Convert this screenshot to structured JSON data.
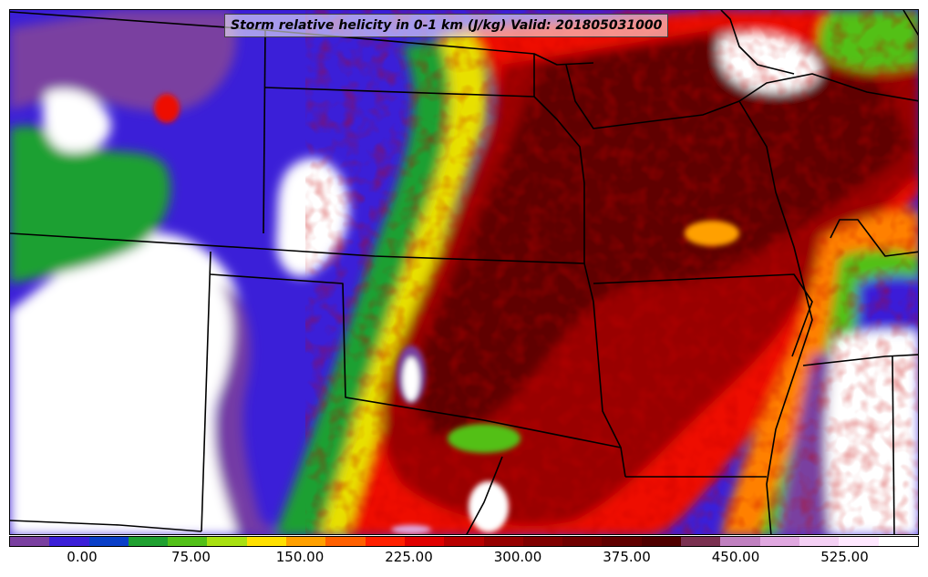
{
  "title": "Storm relative helicity in 0-1 km (J/kg) Valid: 201805031000",
  "colorbar": {
    "colors": [
      "#7a3fa0",
      "#3b1fd8",
      "#0a3fc8",
      "#1fa030",
      "#52c018",
      "#a8e010",
      "#ffe000",
      "#ffa000",
      "#ff6000",
      "#ff2000",
      "#e00000",
      "#b80000",
      "#960000",
      "#800000",
      "#700000",
      "#600000",
      "#500000",
      "#7a3050",
      "#c080c0",
      "#e0a8e0",
      "#f4d0f4",
      "#ffe8ff",
      "#ffffff"
    ],
    "tick_labels": [
      "0.00",
      "75.00",
      "150.00",
      "225.00",
      "300.00",
      "375.00",
      "450.00",
      "525.00"
    ]
  },
  "palette": {
    "white": "#ffffff",
    "purple": "#7a3fa0",
    "blue": "#3b1fd8",
    "green": "#1fa030",
    "yellow": "#e8e000",
    "orange": "#ff8000",
    "red": "#ee1000",
    "darkred": "#9a0000",
    "maroon": "#600000",
    "darkest": "#480000",
    "pink": "#c880c8"
  }
}
